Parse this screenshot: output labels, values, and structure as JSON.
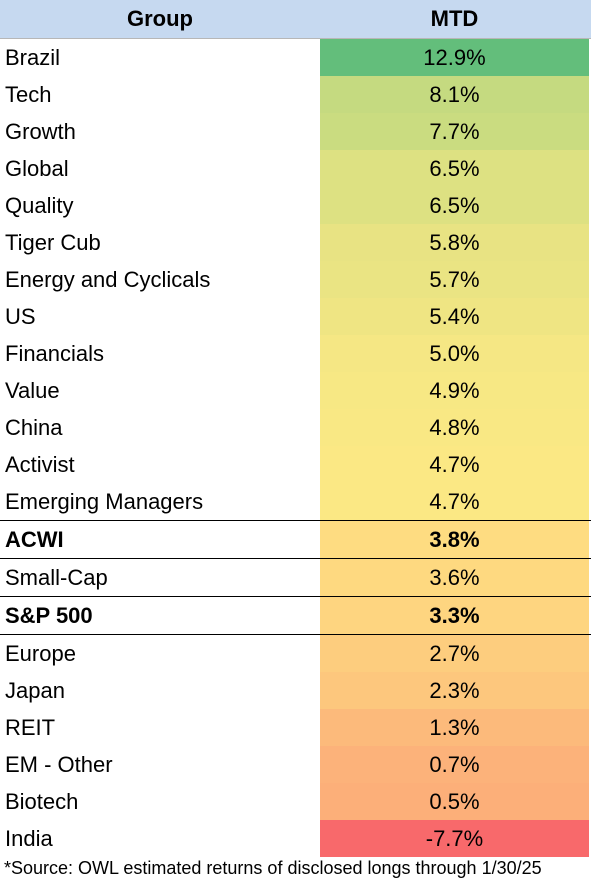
{
  "chart_data": {
    "type": "table",
    "columns": [
      "Group",
      "MTD"
    ],
    "rows": [
      {
        "group": "Brazil",
        "mtd": "12.9%",
        "value": 12.9,
        "color": "#63be7b",
        "bold": false
      },
      {
        "group": "Tech",
        "mtd": "8.1%",
        "value": 8.1,
        "color": "#c5da80",
        "bold": false
      },
      {
        "group": "Growth",
        "mtd": "7.7%",
        "value": 7.7,
        "color": "#cadc80",
        "bold": false
      },
      {
        "group": "Global",
        "mtd": "6.5%",
        "value": 6.5,
        "color": "#dde182",
        "bold": false
      },
      {
        "group": "Quality",
        "mtd": "6.5%",
        "value": 6.5,
        "color": "#dde182",
        "bold": false
      },
      {
        "group": "Tiger Cub",
        "mtd": "5.8%",
        "value": 5.8,
        "color": "#e8e383",
        "bold": false
      },
      {
        "group": "Energy and Cyclicals",
        "mtd": "5.7%",
        "value": 5.7,
        "color": "#eae483",
        "bold": false
      },
      {
        "group": "US",
        "mtd": "5.4%",
        "value": 5.4,
        "color": "#efe583",
        "bold": false
      },
      {
        "group": "Financials",
        "mtd": "5.0%",
        "value": 5.0,
        "color": "#f5e784",
        "bold": false
      },
      {
        "group": "Value",
        "mtd": "4.9%",
        "value": 4.9,
        "color": "#f7e884",
        "bold": false
      },
      {
        "group": "China",
        "mtd": "4.8%",
        "value": 4.8,
        "color": "#f9e884",
        "bold": false
      },
      {
        "group": "Activist",
        "mtd": "4.7%",
        "value": 4.7,
        "color": "#fbe884",
        "bold": false
      },
      {
        "group": "Emerging Managers",
        "mtd": "4.7%",
        "value": 4.7,
        "color": "#fbe884",
        "bold": false
      },
      {
        "group": "ACWI",
        "mtd": "3.8%",
        "value": 3.8,
        "color": "#fedc81",
        "bold": true
      },
      {
        "group": "Small-Cap",
        "mtd": "3.6%",
        "value": 3.6,
        "color": "#fed980",
        "bold": false
      },
      {
        "group": "S&P 500",
        "mtd": "3.3%",
        "value": 3.3,
        "color": "#fed580",
        "bold": true
      },
      {
        "group": "Europe",
        "mtd": "2.7%",
        "value": 2.7,
        "color": "#fdcd7e",
        "bold": false
      },
      {
        "group": "Japan",
        "mtd": "2.3%",
        "value": 2.3,
        "color": "#fdc77d",
        "bold": false
      },
      {
        "group": "REIT",
        "mtd": "1.3%",
        "value": 1.3,
        "color": "#fcba7b",
        "bold": false
      },
      {
        "group": "EM - Other",
        "mtd": "0.7%",
        "value": 0.7,
        "color": "#fcb27a",
        "bold": false
      },
      {
        "group": "Biotech",
        "mtd": "0.5%",
        "value": 0.5,
        "color": "#fcaf79",
        "bold": false
      },
      {
        "group": "India",
        "mtd": "-7.7%",
        "value": -7.7,
        "color": "#f8696b",
        "bold": false
      }
    ],
    "footnote": "*Source: OWL estimated returns of disclosed longs through 1/30/25"
  },
  "colors": {
    "header_background": "#c6d9f0",
    "rule": "#000000"
  }
}
